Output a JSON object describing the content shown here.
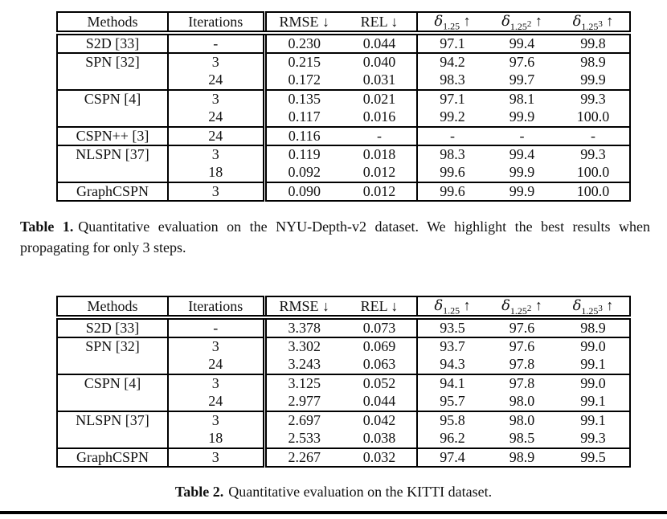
{
  "colors": {
    "text": "#111111",
    "background": "#ffffff",
    "border": "#000000"
  },
  "tables": [
    {
      "columns": [
        {
          "text": "Methods"
        },
        {
          "text": "Iterations"
        },
        {
          "text": "RMSE",
          "arrow": "↓"
        },
        {
          "text": "REL",
          "arrow": "↓"
        },
        {
          "symbol": "δ",
          "sub": "1.25",
          "arrow": "↑"
        },
        {
          "symbol": "δ",
          "sub": "1.25",
          "sup": "2",
          "arrow": "↑"
        },
        {
          "symbol": "δ",
          "sub": "1.25",
          "sup": "3",
          "arrow": "↑"
        }
      ],
      "groups": [
        {
          "bold": false,
          "rows": [
            [
              "S2D [33]",
              "-",
              "0.230",
              "0.044",
              "97.1",
              "99.4",
              "99.8"
            ]
          ]
        },
        {
          "bold": false,
          "rows": [
            [
              "SPN [32]",
              "3",
              "0.215",
              "0.040",
              "94.2",
              "97.6",
              "98.9"
            ],
            [
              "",
              "24",
              "0.172",
              "0.031",
              "98.3",
              "99.7",
              "99.9"
            ]
          ]
        },
        {
          "bold": false,
          "rows": [
            [
              "CSPN [4]",
              "3",
              "0.135",
              "0.021",
              "97.1",
              "98.1",
              "99.3"
            ],
            [
              "",
              "24",
              "0.117",
              "0.016",
              "99.2",
              "99.9",
              "100.0"
            ]
          ]
        },
        {
          "bold": false,
          "rows": [
            [
              "CSPN++ [3]",
              "24",
              "0.116",
              "-",
              "-",
              "-",
              "-"
            ]
          ]
        },
        {
          "bold": false,
          "rows": [
            [
              "NLSPN [37]",
              "3",
              "0.119",
              "0.018",
              "98.3",
              "99.4",
              "99.3"
            ],
            [
              "",
              "18",
              "0.092",
              "0.012",
              "99.6",
              "99.9",
              "100.0"
            ]
          ]
        },
        {
          "bold": true,
          "rows": [
            [
              "GraphCSPN",
              "3",
              "0.090",
              "0.012",
              "99.6",
              "99.9",
              "100.0"
            ]
          ]
        }
      ],
      "caption": {
        "label": "Table 1.",
        "text": "Quantitative evaluation on the NYU-Depth-v2 dataset. We highlight the best results when propagating for only 3 steps."
      }
    },
    {
      "columns": [
        {
          "text": "Methods"
        },
        {
          "text": "Iterations"
        },
        {
          "text": "RMSE",
          "arrow": "↓"
        },
        {
          "text": "REL",
          "arrow": "↓"
        },
        {
          "symbol": "δ",
          "sub": "1.25",
          "arrow": "↑"
        },
        {
          "symbol": "δ",
          "sub": "1.25",
          "sup": "2",
          "arrow": "↑"
        },
        {
          "symbol": "δ",
          "sub": "1.25",
          "sup": "3",
          "arrow": "↑"
        }
      ],
      "groups": [
        {
          "bold": false,
          "rows": [
            [
              "S2D [33]",
              "-",
              "3.378",
              "0.073",
              "93.5",
              "97.6",
              "98.9"
            ]
          ]
        },
        {
          "bold": false,
          "rows": [
            [
              "SPN [32]",
              "3",
              "3.302",
              "0.069",
              "93.7",
              "97.6",
              "99.0"
            ],
            [
              "",
              "24",
              "3.243",
              "0.063",
              "94.3",
              "97.8",
              "99.1"
            ]
          ]
        },
        {
          "bold": false,
          "rows": [
            [
              "CSPN [4]",
              "3",
              "3.125",
              "0.052",
              "94.1",
              "97.8",
              "99.0"
            ],
            [
              "",
              "24",
              "2.977",
              "0.044",
              "95.7",
              "98.0",
              "99.1"
            ]
          ]
        },
        {
          "bold": false,
          "rows": [
            [
              "NLSPN [37]",
              "3",
              "2.697",
              "0.042",
              "95.8",
              "98.0",
              "99.1"
            ],
            [
              "",
              "18",
              "2.533",
              "0.038",
              "96.2",
              "98.5",
              "99.3"
            ]
          ]
        },
        {
          "bold": true,
          "rows": [
            [
              "GraphCSPN",
              "3",
              "2.267",
              "0.032",
              "97.4",
              "98.9",
              "99.5"
            ]
          ]
        }
      ],
      "caption": {
        "label": "Table 2.",
        "text": "Quantitative evaluation on the KITTI dataset."
      }
    }
  ]
}
